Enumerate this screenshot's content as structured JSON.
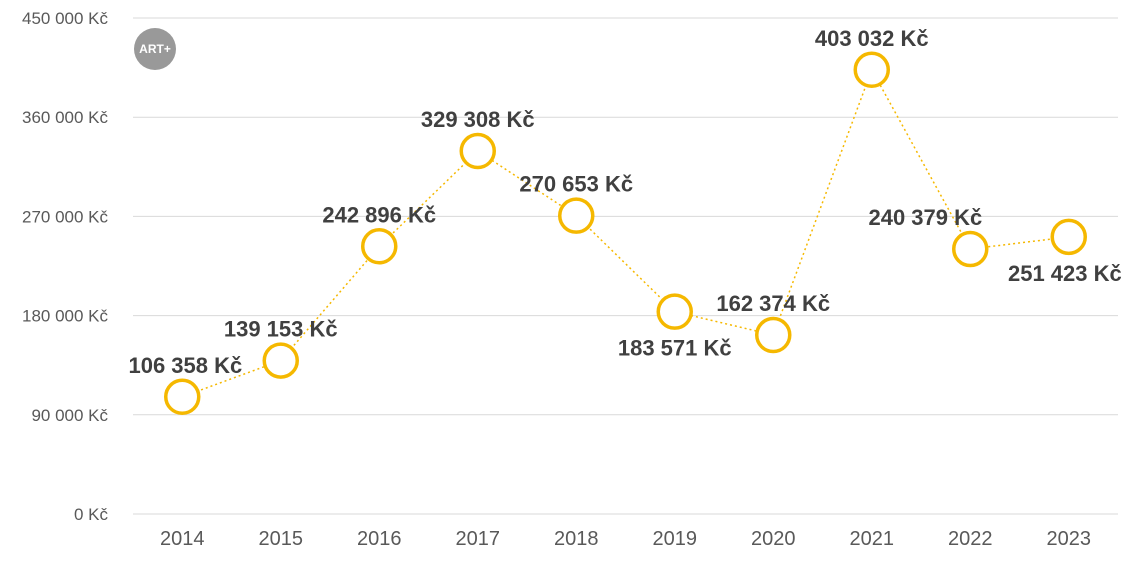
{
  "brand": {
    "logo_text": "ART+",
    "logo_color": "#999999"
  },
  "chart_data": {
    "type": "line",
    "categories": [
      "2014",
      "2015",
      "2016",
      "2017",
      "2018",
      "2019",
      "2020",
      "2021",
      "2022",
      "2023"
    ],
    "values": [
      106358,
      139153,
      242896,
      329308,
      270653,
      183571,
      162374,
      403032,
      240379,
      251423
    ],
    "data_labels": [
      "106 358 Kč",
      "139 153 Kč",
      "242 896 Kč",
      "329 308 Kč",
      "270 653 Kč",
      "183 571 Kč",
      "162 374 Kč",
      "403 032 Kč",
      "240 379 Kč",
      "251 423 Kč"
    ],
    "label_positions": [
      "left",
      "above",
      "above",
      "above",
      "above",
      "below",
      "above",
      "above",
      "left",
      "below"
    ],
    "yticks": [
      0,
      90000,
      180000,
      270000,
      360000,
      450000
    ],
    "ytick_labels": [
      "0  Kč",
      "90 000 Kč",
      "180 000 Kč",
      "270 000 Kč",
      "360 000 Kč",
      "450 000 Kč"
    ],
    "ylim": [
      0,
      450000
    ],
    "title": "",
    "xlabel": "",
    "ylabel": "",
    "grid": true,
    "legend": "none",
    "series_color": "#F5B800",
    "line_style": "dotted",
    "gridline_color": "#D9D9D9"
  }
}
